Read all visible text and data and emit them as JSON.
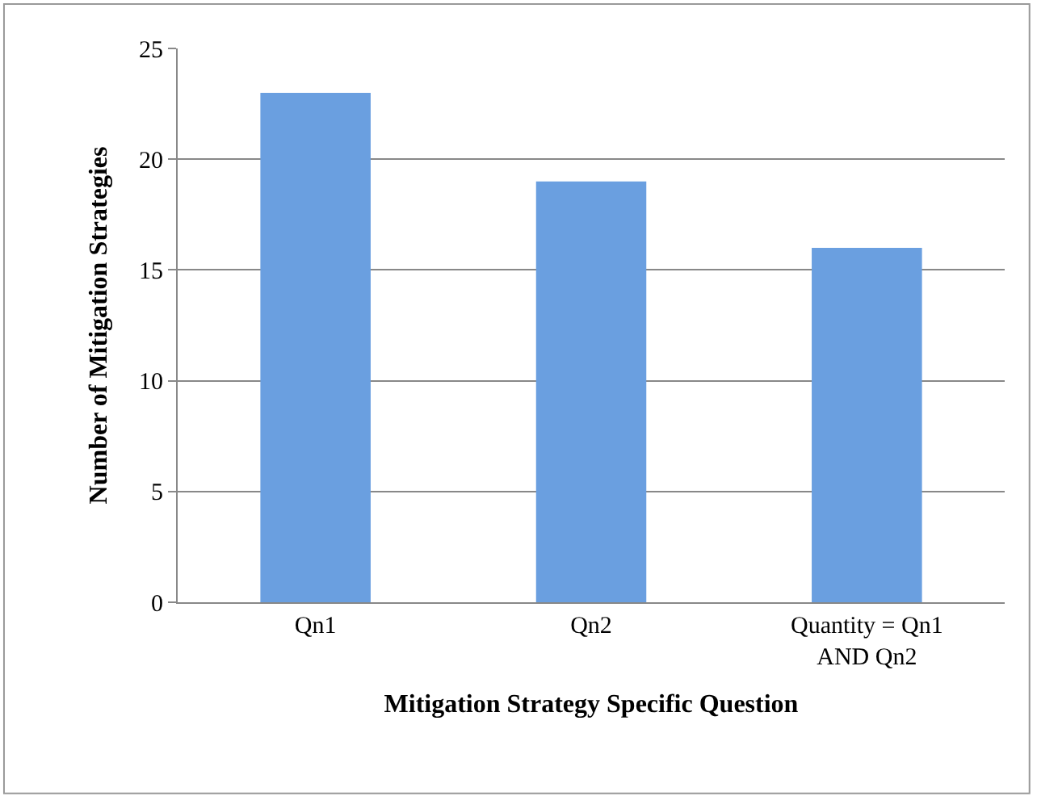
{
  "chart_data": {
    "type": "bar",
    "xlabel": "Mitigation Strategy Specific Question",
    "ylabel": "Number of Mitigation Strategies",
    "categories": [
      "Qn1",
      "Qn2",
      "Quantity = Qn1\nAND Qn2"
    ],
    "values": [
      23,
      19,
      16
    ],
    "color": "#6a9fe0",
    "ylim": [
      0,
      25
    ],
    "yticks": [
      0,
      5,
      10,
      15,
      20,
      25
    ],
    "grid": "y"
  }
}
